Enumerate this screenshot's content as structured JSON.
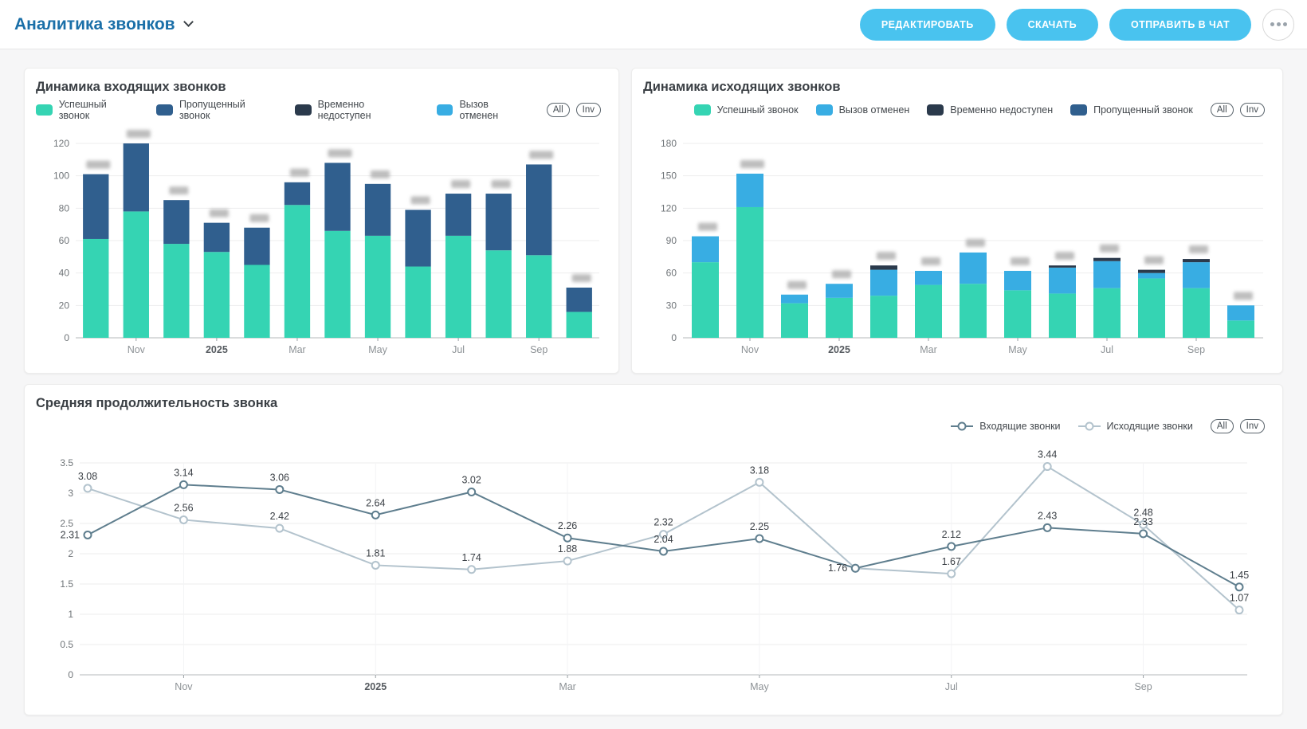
{
  "header": {
    "title": "Аналитика звонков",
    "edit_label": "РЕДАКТИРОВАТЬ",
    "download_label": "СКАЧАТЬ",
    "send_chat_label": "ОТПРАВИТЬ В ЧАТ"
  },
  "filters": {
    "all": "All",
    "inv": "Inv"
  },
  "chart_data": [
    {
      "id": "incoming",
      "type": "bar",
      "stacked": true,
      "title": "Динамика входящих звонков",
      "ylim": [
        0,
        120
      ],
      "yticks": [
        0,
        20,
        40,
        60,
        80,
        100,
        120
      ],
      "x_ticks": {
        "indices": [
          1,
          3,
          5,
          7,
          9,
          11
        ],
        "labels": [
          "Nov",
          "2025",
          "Mar",
          "May",
          "Jul",
          "Sep"
        ],
        "bold": "2025"
      },
      "series": [
        {
          "name": "Успешный звонок",
          "color": "#35d4b3",
          "values": [
            61,
            78,
            58,
            53,
            45,
            82,
            66,
            63,
            44,
            63,
            54,
            51,
            16
          ]
        },
        {
          "name": "Пропущенный звонок",
          "color": "#305f8e",
          "values": [
            40,
            42,
            27,
            18,
            23,
            14,
            42,
            32,
            35,
            26,
            35,
            56,
            15
          ]
        },
        {
          "name": "Временно недоступен",
          "color": "#2b3a4c",
          "values": [
            0,
            0,
            0,
            0,
            0,
            0,
            0,
            0,
            0,
            0,
            0,
            0,
            0
          ]
        },
        {
          "name": "Вызов отменен",
          "color": "#38ade3",
          "values": [
            0,
            0,
            0,
            0,
            0,
            0,
            0,
            0,
            0,
            0,
            0,
            0,
            0
          ]
        }
      ],
      "totals": [
        101,
        120,
        85,
        71,
        68,
        96,
        108,
        95,
        79,
        89,
        89,
        107,
        31
      ],
      "value_labels": "blurred",
      "grid": "horizontal",
      "legend_position": "top-right"
    },
    {
      "id": "outgoing",
      "type": "bar",
      "stacked": true,
      "title": "Динамика исходящих звонков",
      "ylim": [
        0,
        180
      ],
      "yticks": [
        0,
        30,
        60,
        90,
        120,
        150,
        180
      ],
      "x_ticks": {
        "indices": [
          1,
          3,
          5,
          7,
          9,
          11
        ],
        "labels": [
          "Nov",
          "2025",
          "Mar",
          "May",
          "Jul",
          "Sep"
        ],
        "bold": "2025"
      },
      "series": [
        {
          "name": "Успешный звонок",
          "color": "#35d4b3",
          "values": [
            70,
            121,
            32,
            37,
            39,
            49,
            50,
            44,
            41,
            46,
            55,
            46,
            16
          ]
        },
        {
          "name": "Вызов отменен",
          "color": "#38ade3",
          "values": [
            24,
            31,
            8,
            13,
            24,
            13,
            29,
            18,
            24,
            25,
            5,
            24,
            14
          ]
        },
        {
          "name": "Временно недоступен",
          "color": "#2b3a4c",
          "values": [
            0,
            0,
            0,
            0,
            4,
            0,
            0,
            0,
            2,
            3,
            3,
            3,
            0
          ]
        },
        {
          "name": "Пропущенный звонок",
          "color": "#305f8e",
          "values": [
            0,
            0,
            0,
            0,
            0,
            0,
            0,
            0,
            0,
            0,
            0,
            0,
            0
          ]
        }
      ],
      "totals": [
        94,
        152,
        40,
        50,
        67,
        62,
        79,
        62,
        67,
        74,
        63,
        73,
        30
      ],
      "value_labels": "blurred",
      "grid": "horizontal",
      "legend_position": "top-right"
    },
    {
      "id": "duration",
      "type": "line",
      "title": "Средняя продолжительность звонка",
      "ylim": [
        0,
        3.5
      ],
      "yticks": [
        0,
        0.5,
        1,
        1.5,
        2,
        2.5,
        3,
        3.5
      ],
      "x_ticks": {
        "indices": [
          1,
          3,
          5,
          7,
          9,
          11
        ],
        "labels": [
          "Nov",
          "2025",
          "Mar",
          "May",
          "Jul",
          "Sep"
        ],
        "bold": "2025"
      },
      "series": [
        {
          "name": "Входящие звонки",
          "color": "#5f7e8e",
          "values": [
            2.31,
            3.14,
            3.06,
            2.64,
            3.02,
            2.26,
            2.04,
            2.25,
            1.76,
            2.12,
            2.43,
            2.33,
            1.45
          ]
        },
        {
          "name": "Исходящие звонки",
          "color": "#b3c3cd",
          "values": [
            3.08,
            2.56,
            2.42,
            1.81,
            1.74,
            1.88,
            2.32,
            3.18,
            1.76,
            1.67,
            3.44,
            2.48,
            1.07
          ]
        }
      ],
      "value_labels": "visible",
      "grid": "horizontal",
      "legend_position": "top-right"
    }
  ]
}
